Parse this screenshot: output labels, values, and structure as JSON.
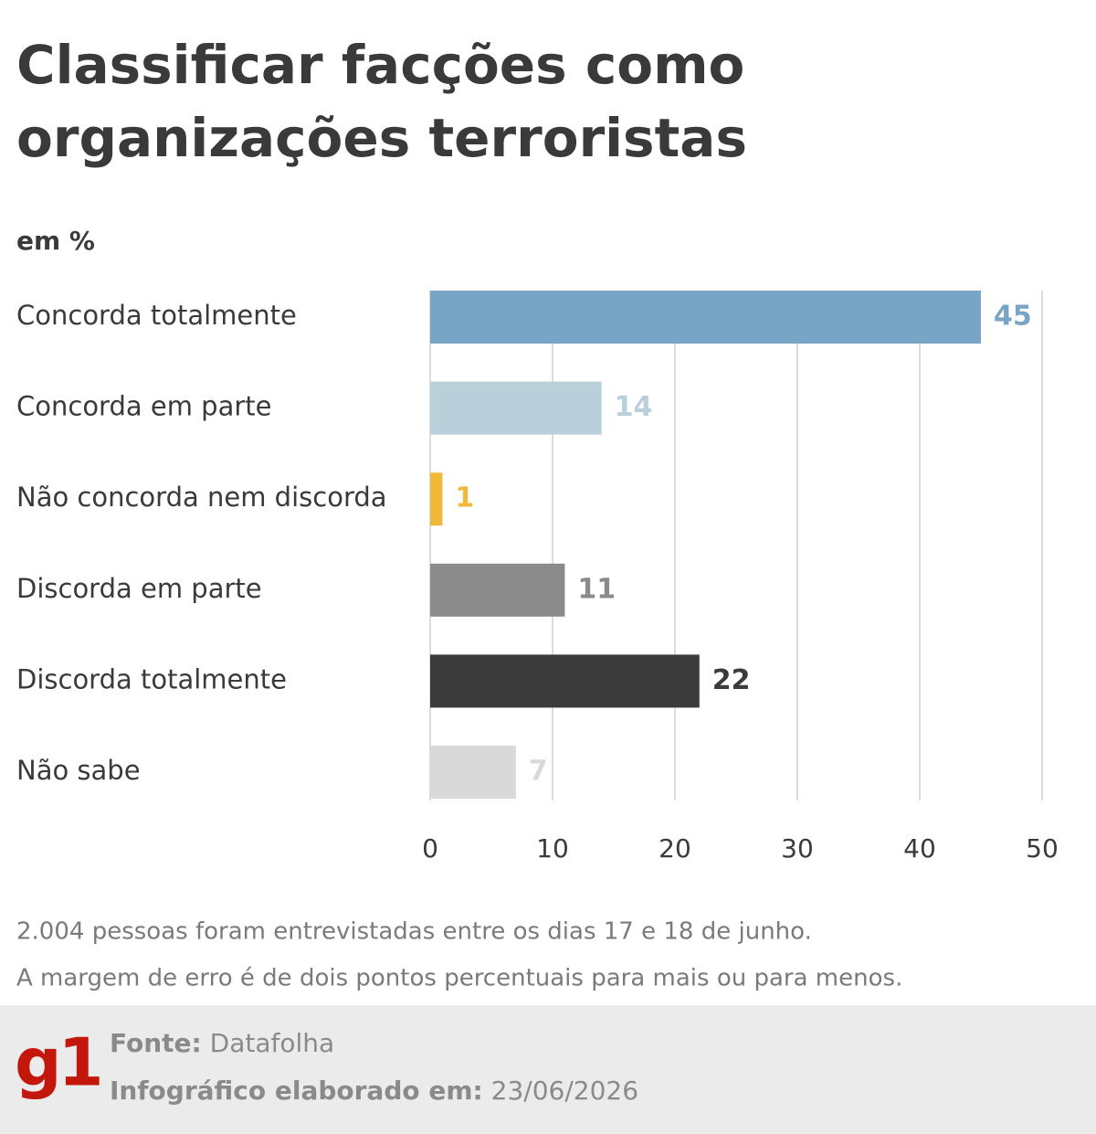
{
  "chart_data": {
    "type": "bar",
    "orientation": "horizontal",
    "title": [
      "Classificar facções como",
      "organizações terroristas"
    ],
    "subtitle": "em %",
    "categories": [
      "Concorda totalmente",
      "Concorda em parte",
      "Não concorda nem discorda",
      "Discorda em parte",
      "Discorda totalmente",
      "Não sabe"
    ],
    "values": [
      45,
      14,
      1,
      11,
      22,
      7
    ],
    "colors": [
      "#78a4c5",
      "#b9cfd9",
      "#f0b93a",
      "#8b8b8b",
      "#3b3b3b",
      "#d9d9d9"
    ],
    "xlim": [
      0,
      50
    ],
    "xticks": [
      0,
      10,
      20,
      30,
      40,
      50
    ],
    "grid": true,
    "notes": [
      "2.004 pessoas foram entrevistadas entre os dias 17 e 18 de junho.",
      "A margem de erro é de dois pontos percentuais para mais ou para menos."
    ],
    "logo": "g1",
    "source_label": "Fonte:",
    "source": "Datafolha",
    "created_label": "Infográfico elaborado em:",
    "created": "23/06/2026"
  }
}
